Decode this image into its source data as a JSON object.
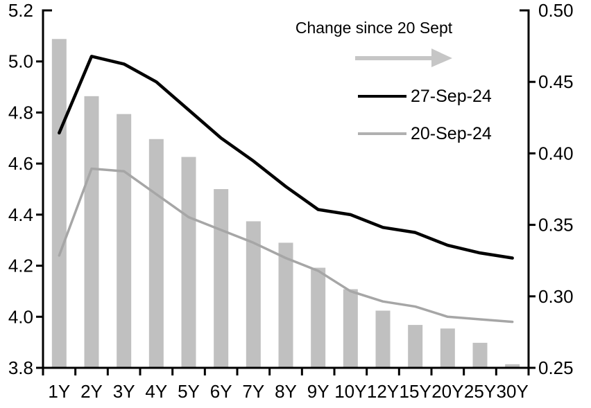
{
  "legend": {
    "title": "Change since 20 Sept",
    "arrow_icon": "right-arrow",
    "items": [
      {
        "label": "27-Sep-24",
        "color": "#000000"
      },
      {
        "label": "20-Sep-24",
        "color": "#b0b0b0"
      }
    ]
  },
  "colors": {
    "bar": "#c0c0c0",
    "arrow": "#c6c6c6",
    "line_27sep": "#000000",
    "line_20sep": "#a6a6a6",
    "axis": "#000000"
  },
  "chart_data": {
    "type": "combo_bar_line",
    "title": "",
    "xlabel": "",
    "ylabel_left": "",
    "ylabel_right": "",
    "grid": false,
    "legend_position": "top-right-inside",
    "categories": [
      "1Y",
      "2Y",
      "3Y",
      "4Y",
      "5Y",
      "6Y",
      "7Y",
      "8Y",
      "9Y",
      "10Y",
      "12Y",
      "15Y",
      "20Y",
      "25Y",
      "30Y"
    ],
    "series": [
      {
        "name": "Change since 20 Sept",
        "type": "bar",
        "axis": "right",
        "color": "#c0c0c0",
        "values": [
          0.48,
          0.44,
          0.4275,
          0.41,
          0.3975,
          0.375,
          0.3525,
          0.3375,
          0.32,
          0.305,
          0.29,
          0.28,
          0.2775,
          0.2675,
          0.2525
        ]
      },
      {
        "name": "27-Sep-24",
        "type": "line",
        "axis": "left",
        "color": "#000000",
        "values": [
          4.72,
          5.02,
          4.99,
          4.92,
          4.81,
          4.7,
          4.61,
          4.51,
          4.42,
          4.4,
          4.35,
          4.33,
          4.28,
          4.25,
          4.23
        ]
      },
      {
        "name": "20-Sep-24",
        "type": "line",
        "axis": "left",
        "color": "#a6a6a6",
        "values": [
          4.24,
          4.58,
          4.57,
          4.48,
          4.39,
          4.34,
          4.29,
          4.23,
          4.18,
          4.1,
          4.06,
          4.04,
          4.0,
          3.99,
          3.98
        ]
      }
    ],
    "left_axis": {
      "min": 3.8,
      "max": 5.2,
      "step": 0.2,
      "tick_labels": [
        "5.2",
        "5.0",
        "4.8",
        "4.6",
        "4.4",
        "4.2",
        "4.0",
        "3.8"
      ]
    },
    "right_axis": {
      "min": 0.25,
      "max": 0.5,
      "step": 0.05,
      "tick_labels": [
        "0.50",
        "0.45",
        "0.40",
        "0.35",
        "0.30",
        "0.25"
      ]
    }
  }
}
